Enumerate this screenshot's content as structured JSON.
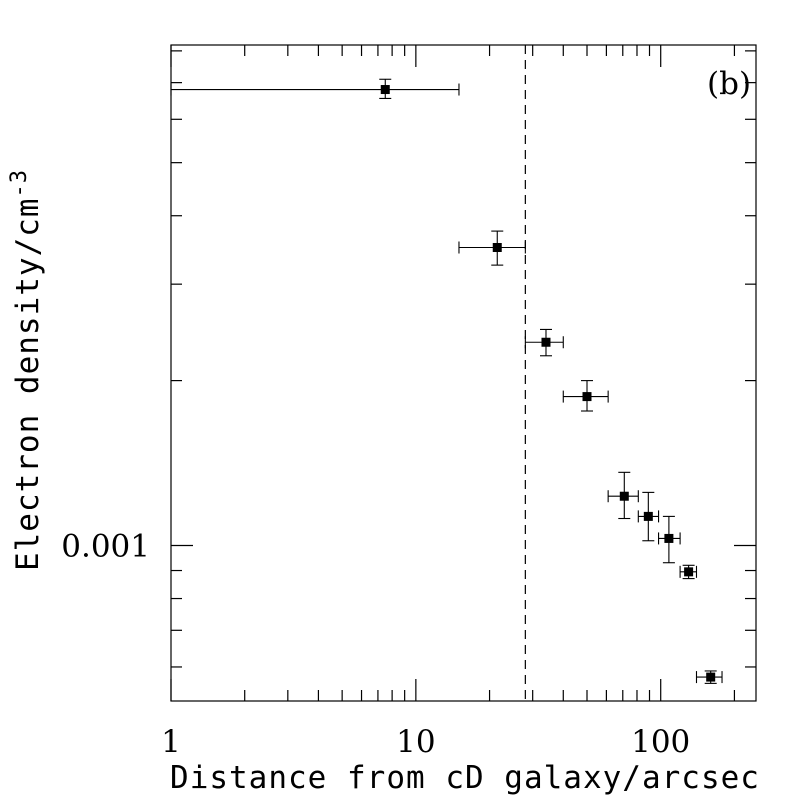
{
  "chart_data": {
    "type": "scatter",
    "panel_label": "(b)",
    "xlabel": "Distance from cD galaxy/arcsec",
    "ylabel": "Electron density/cm",
    "ylabel_exponent": "-3",
    "x_scale": "log",
    "y_scale": "log",
    "xlim": [
      1,
      245
    ],
    "ylim": [
      0.00052,
      0.0082
    ],
    "x_tick_labels": [
      {
        "value": 1,
        "label": "1"
      },
      {
        "value": 10,
        "label": "10"
      },
      {
        "value": 100,
        "label": "100"
      }
    ],
    "y_tick_labels": [
      {
        "value": 0.001,
        "label": "0.001"
      }
    ],
    "y_minor_ticks": [
      0.0006,
      0.0007,
      0.0008,
      0.0009,
      0.002,
      0.003,
      0.004,
      0.005,
      0.006,
      0.007,
      0.008
    ],
    "vertical_line": {
      "x": 28,
      "style": "dashed"
    },
    "points": [
      {
        "x": 7.5,
        "xerr_low": 1,
        "xerr_high": 15,
        "y": 0.0068,
        "y_low": 0.00655,
        "y_high": 0.0071
      },
      {
        "x": 21.5,
        "xerr_low": 15,
        "xerr_high": 28,
        "y": 0.0035,
        "y_low": 0.00325,
        "y_high": 0.00375
      },
      {
        "x": 34,
        "xerr_low": 28,
        "xerr_high": 40,
        "y": 0.00235,
        "y_low": 0.00222,
        "y_high": 0.00248
      },
      {
        "x": 50,
        "xerr_low": 40,
        "xerr_high": 61,
        "y": 0.00187,
        "y_low": 0.00176,
        "y_high": 0.002
      },
      {
        "x": 71,
        "xerr_low": 61,
        "xerr_high": 81,
        "y": 0.00123,
        "y_low": 0.00112,
        "y_high": 0.00136
      },
      {
        "x": 89,
        "xerr_low": 81,
        "xerr_high": 98,
        "y": 0.00113,
        "y_low": 0.00102,
        "y_high": 0.00125
      },
      {
        "x": 108,
        "xerr_low": 98,
        "xerr_high": 120,
        "y": 0.00103,
        "y_low": 0.00093,
        "y_high": 0.00113
      },
      {
        "x": 130,
        "xerr_low": 120,
        "xerr_high": 140,
        "y": 0.000895,
        "y_low": 0.00087,
        "y_high": 0.00092
      },
      {
        "x": 160,
        "xerr_low": 140,
        "xerr_high": 178,
        "y": 0.000575,
        "y_low": 0.00056,
        "y_high": 0.00059
      }
    ]
  }
}
